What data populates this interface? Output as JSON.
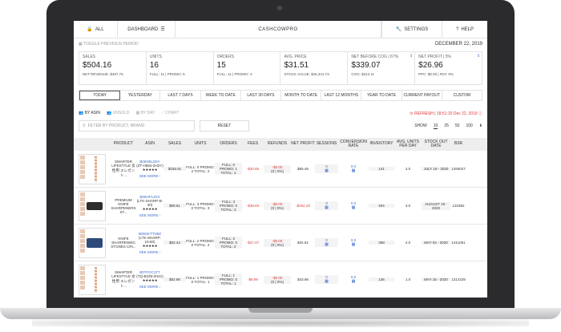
{
  "nav": {
    "all": "ALL",
    "dashboard": "DASHBOARD",
    "brand": "CASHCOWPRO",
    "settings": "SETTINGS",
    "help": "HELP"
  },
  "toggle_period": "TOGGLE PREVIOUS PERIOD",
  "date": "DECEMBER 22, 2019",
  "cards": [
    {
      "label": "SALES",
      "value": "$504.16",
      "sub": "NET REVENUE: $497.76",
      "info": false
    },
    {
      "label": "UNITS",
      "value": "16",
      "sub": "FULL: 11 | PROMO: 5",
      "info": false
    },
    {
      "label": "ORDERS",
      "value": "15",
      "sub": "FULL: 11 | PROMO: 4",
      "info": false
    },
    {
      "label": "AVG. PRICE",
      "value": "$31.51",
      "sub": "STOCK VALUE: $45,341.73",
      "info": false
    },
    {
      "label": "NET BEFORE COG | 67%",
      "value": "$339.07",
      "sub": "COG: $312.11",
      "info": true
    },
    {
      "label": "NET PROFIT | 5%",
      "value": "$26.96",
      "sub": "PPC: $0.00 | ROI: 9%",
      "info": true
    }
  ],
  "periods": [
    "TODAY",
    "YESTERDAY",
    "LAST 7 DAYS",
    "WEEK TO DATE",
    "LAST 30 DAYS",
    "MONTH TO DATE",
    "LAST 12 MONTHS",
    "YEAR TO DATE",
    "CURRENT PAYOUT",
    "CUSTOM"
  ],
  "views": {
    "by_asin": "BY ASIN",
    "unsold": "UNSOLD",
    "by_day": "BY DAY",
    "chart": "CHART"
  },
  "refresh": "REFRESH | 18:51:10 Dec 22, 2019",
  "filter_placeholder": "FILTER BY PRODUCT, BRAND",
  "reset": "RESET",
  "show": {
    "label": "SHOW",
    "options": [
      "10",
      "25",
      "50",
      "100"
    ]
  },
  "columns": [
    "PRODUCT",
    "ASIN",
    "SALES",
    "UNITS",
    "ORDERS",
    "FEES",
    "REFUNDS",
    "NET PROFIT",
    "SESSIONS",
    "CONVERSION RATE",
    "INVENTORY",
    "AVG. UNITS PER DAY",
    "STOCK OUT DATE",
    "BSR"
  ],
  "rows": [
    {
      "product": "SMARTER LIFESTYLE 女性用 エレガント...",
      "asin": "B09XBLD6Y",
      "asin_sub": "(ZT-H684-ZH2Y)",
      "stars": "★★★★★",
      "see_more": "SEE MORE",
      "sales": "$155.91",
      "units": "FULL: 0 PROMO: 2 TOTAL: 2",
      "orders": "FULL: 0 PROMO: 1 TOTAL: 1",
      "fees": "-$20.65",
      "refunds": "-$0.00",
      "refunds_sub": "(0 | 0%)",
      "net_profit": "$65.46",
      "np_red": false,
      "sessions": "0",
      "conversion": "0.0",
      "inventory": "141",
      "avg": "2.0",
      "stockout": "JULY 19 - 2020",
      "bsr": "1293027",
      "thumb": "chain"
    },
    {
      "product": "PREMIUM KNIFE SHARPENERS ST...",
      "asin": "B09HF12KX",
      "asin_sub": "(LTK-SHARP-B-30)",
      "stars": "★★★★★",
      "see_more": "SEE MORE",
      "sales": "$59.61",
      "units": "FULL: 3 PROMO: 0 TOTAL: 3",
      "orders": "FULL: 3 PROMO: 0 TOTAL: 3",
      "fees": "-$39.83",
      "refunds": "-$0.00",
      "refunds_sub": "(0 | 0%)",
      "net_profit": "-$262.33",
      "np_red": true,
      "sessions": "0",
      "conversion": "0.0",
      "inventory": "404",
      "avg": "3.0",
      "stockout": "AUGUST 19 - 2020",
      "bsr": "131962",
      "thumb": "knife"
    },
    {
      "product": "KNIFE SHARPENING STONES CRI...",
      "asin": "B06XKTTN9Z",
      "asin_sub": "(LTK-SHARP-10-60)",
      "stars": "★★★★★",
      "see_more": "SEE MORE",
      "sales": "$62.34",
      "units": "FULL: 2 PROMO: 0 TOTAL: 2",
      "orders": "FULL: 2 PROMO: 0 TOTAL: 2",
      "fees": "-$27.47",
      "refunds": "-$0.00",
      "refunds_sub": "(0 | 0%)",
      "net_profit": "$34.51",
      "np_red": false,
      "sessions": "0",
      "conversion": "0.0",
      "inventory": "358",
      "avg": "2.0",
      "stockout": "MAY 04 - 2020",
      "bsr": "1411051",
      "thumb": "stone"
    },
    {
      "product": "SMARTER LIFESTYLE 女性用 エレガント...",
      "asin": "B07FGC1T7",
      "asin_sub": "(TQ-B229-2H21)",
      "stars": "★★★★★",
      "see_more": "SEE MORE",
      "sales": "$52.96",
      "units": "FULL: 1 PROMO: 0 TOTAL: 1",
      "orders": "FULL: 1 PROMO: 0 TOTAL: 1",
      "fees": "-$8.99",
      "refunds": "-$0.00",
      "refunds_sub": "(0 | 0%)",
      "net_profit": "$43.96",
      "np_red": false,
      "sessions": "0",
      "conversion": "0.0",
      "inventory": "146",
      "avg": "1.0",
      "stockout": "MAY 16 - 2020",
      "bsr": "1314229",
      "thumb": "chain"
    }
  ]
}
